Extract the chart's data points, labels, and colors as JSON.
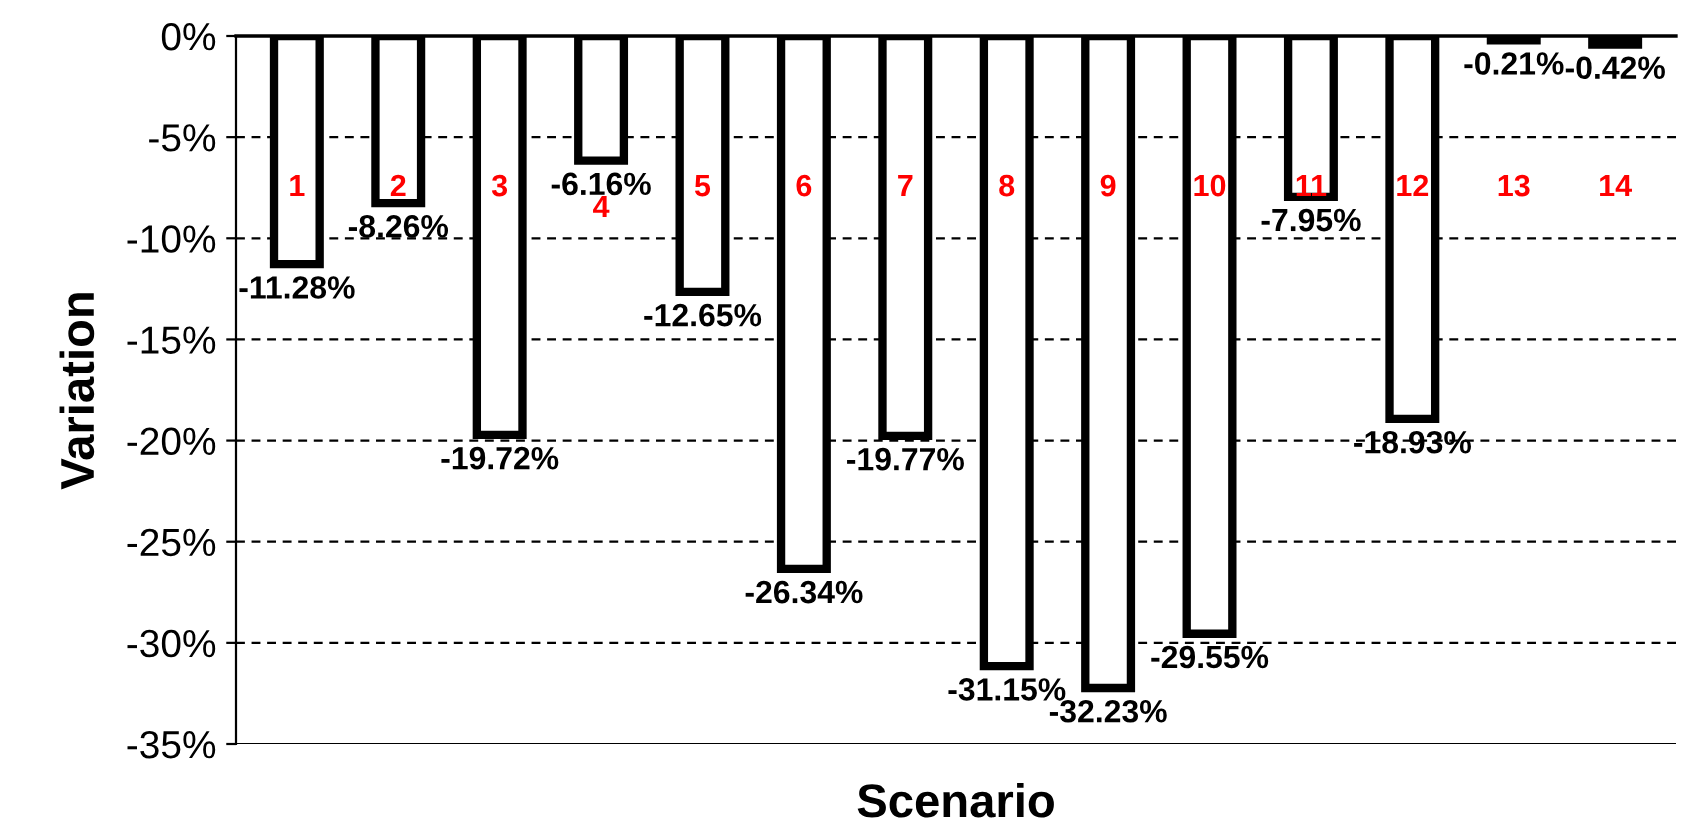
{
  "chart_data": {
    "type": "bar",
    "xlabel": "Scenario",
    "ylabel": "Variation",
    "categories": [
      "1",
      "2",
      "3",
      "4",
      "5",
      "6",
      "7",
      "8",
      "9",
      "10",
      "11",
      "12",
      "13",
      "14"
    ],
    "values": [
      -11.28,
      -8.26,
      -19.72,
      -6.16,
      -12.65,
      -26.34,
      -19.77,
      -31.15,
      -32.23,
      -29.55,
      -7.95,
      -18.93,
      -0.21,
      -0.42
    ],
    "value_labels": [
      "-11.28%",
      "-8.26%",
      "-19.72%",
      "-6.16%",
      "-12.65%",
      "-26.34%",
      "-19.77%",
      "-31.15%",
      "-32.23%",
      "-29.55%",
      "-7.95%",
      "-18.93%",
      "-0.21%",
      "-0.42%"
    ],
    "color": "#ffffff",
    "ylim": [
      -35,
      0
    ],
    "yticks": [
      {
        "value": 0,
        "label": "0%"
      },
      {
        "value": -5,
        "label": "-5%"
      },
      {
        "value": -10,
        "label": "-10%"
      },
      {
        "value": -15,
        "label": "-15%"
      },
      {
        "value": -20,
        "label": "-20%"
      },
      {
        "value": -25,
        "label": "-25%"
      },
      {
        "value": -30,
        "label": "-30%"
      },
      {
        "value": -35,
        "label": "-35%"
      }
    ],
    "grid": "y",
    "legend": false
  }
}
